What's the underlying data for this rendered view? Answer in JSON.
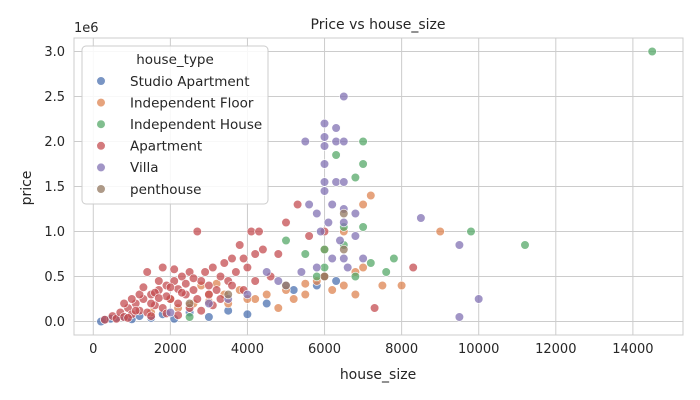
{
  "chart_data": {
    "type": "scatter",
    "title": "Price vs house_size",
    "xlabel": "house_size",
    "ylabel": "price",
    "y_offset_label": "1e6",
    "xlim": [
      -500,
      15300
    ],
    "ylim": [
      -150000,
      3150000
    ],
    "x_ticks": [
      0,
      2000,
      4000,
      6000,
      8000,
      10000,
      12000,
      14000
    ],
    "x_tick_labels": [
      "0",
      "2000",
      "4000",
      "6000",
      "8000",
      "10000",
      "12000",
      "14000"
    ],
    "y_ticks": [
      0,
      500000,
      1000000,
      1500000,
      2000000,
      2500000,
      3000000
    ],
    "y_tick_labels": [
      "0.0",
      "0.5",
      "1.0",
      "1.5",
      "2.0",
      "2.5",
      "3.0"
    ],
    "grid": true,
    "legend": {
      "title": "house_type",
      "position": "upper-left"
    },
    "series": [
      {
        "name": "Studio Apartment",
        "color": "#4c72b0",
        "points": [
          [
            200,
            0
          ],
          [
            300,
            20000
          ],
          [
            450,
            30000
          ],
          [
            600,
            40000
          ],
          [
            800,
            50000
          ],
          [
            1000,
            25000
          ],
          [
            1200,
            60000
          ],
          [
            1500,
            40000
          ],
          [
            1800,
            80000
          ],
          [
            2100,
            30000
          ],
          [
            2500,
            100000
          ],
          [
            3000,
            50000
          ],
          [
            3500,
            120000
          ],
          [
            4000,
            80000
          ],
          [
            4500,
            200000
          ],
          [
            5200,
            350000
          ],
          [
            5800,
            400000
          ],
          [
            6000,
            500000
          ],
          [
            6300,
            450000
          ]
        ]
      },
      {
        "name": "Independent Floor",
        "color": "#dd8452",
        "points": [
          [
            1500,
            100000
          ],
          [
            2000,
            250000
          ],
          [
            2500,
            180000
          ],
          [
            2800,
            400000
          ],
          [
            3000,
            300000
          ],
          [
            3200,
            420000
          ],
          [
            3500,
            200000
          ],
          [
            3800,
            350000
          ],
          [
            4200,
            250000
          ],
          [
            4500,
            300000
          ],
          [
            4800,
            150000
          ],
          [
            5000,
            350000
          ],
          [
            5200,
            250000
          ],
          [
            5500,
            300000
          ],
          [
            5800,
            450000
          ],
          [
            6000,
            500000
          ],
          [
            6200,
            350000
          ],
          [
            6500,
            400000
          ],
          [
            6800,
            300000
          ],
          [
            7000,
            600000
          ],
          [
            7200,
            1400000
          ],
          [
            7500,
            400000
          ],
          [
            6500,
            1000000
          ],
          [
            7000,
            1300000
          ],
          [
            8000,
            400000
          ],
          [
            9000,
            1000000
          ],
          [
            6000,
            800000
          ],
          [
            6800,
            550000
          ],
          [
            5500,
            420000
          ],
          [
            3000,
            220000
          ],
          [
            4000,
            250000
          ],
          [
            2200,
            150000
          ],
          [
            2600,
            200000
          ],
          [
            3400,
            300000
          ]
        ]
      },
      {
        "name": "Independent House",
        "color": "#55a868",
        "points": [
          [
            2500,
            50000
          ],
          [
            5000,
            900000
          ],
          [
            5500,
            750000
          ],
          [
            6000,
            800000
          ],
          [
            6300,
            1850000
          ],
          [
            6500,
            1050000
          ],
          [
            6800,
            1600000
          ],
          [
            7000,
            2000000
          ],
          [
            7000,
            1750000
          ],
          [
            7000,
            1050000
          ],
          [
            7200,
            650000
          ],
          [
            7600,
            550000
          ],
          [
            7800,
            700000
          ],
          [
            9800,
            1000000
          ],
          [
            11200,
            850000
          ],
          [
            14500,
            3000000
          ],
          [
            6000,
            600000
          ],
          [
            6500,
            850000
          ],
          [
            6800,
            500000
          ],
          [
            5800,
            500000
          ]
        ]
      },
      {
        "name": "Apartment",
        "color": "#c44e52",
        "points": [
          [
            300,
            20000
          ],
          [
            500,
            60000
          ],
          [
            600,
            30000
          ],
          [
            700,
            100000
          ],
          [
            800,
            50000
          ],
          [
            900,
            150000
          ],
          [
            1000,
            80000
          ],
          [
            1100,
            200000
          ],
          [
            1200,
            120000
          ],
          [
            1300,
            250000
          ],
          [
            1400,
            100000
          ],
          [
            1500,
            300000
          ],
          [
            1600,
            180000
          ],
          [
            1700,
            350000
          ],
          [
            1800,
            150000
          ],
          [
            1900,
            400000
          ],
          [
            2000,
            250000
          ],
          [
            2100,
            450000
          ],
          [
            2200,
            200000
          ],
          [
            2300,
            500000
          ],
          [
            2400,
            300000
          ],
          [
            2500,
            550000
          ],
          [
            2600,
            350000
          ],
          [
            2700,
            1000000
          ],
          [
            2800,
            450000
          ],
          [
            2900,
            550000
          ],
          [
            3000,
            400000
          ],
          [
            3100,
            600000
          ],
          [
            3200,
            350000
          ],
          [
            3300,
            500000
          ],
          [
            3400,
            650000
          ],
          [
            3500,
            450000
          ],
          [
            3600,
            700000
          ],
          [
            3700,
            550000
          ],
          [
            3800,
            850000
          ],
          [
            3900,
            700000
          ],
          [
            4000,
            600000
          ],
          [
            4100,
            1000000
          ],
          [
            4200,
            750000
          ],
          [
            4300,
            1000000
          ],
          [
            4400,
            800000
          ],
          [
            4600,
            500000
          ],
          [
            4800,
            750000
          ],
          [
            5000,
            1100000
          ],
          [
            5300,
            1300000
          ],
          [
            5600,
            950000
          ],
          [
            6000,
            1000000
          ],
          [
            7300,
            150000
          ],
          [
            8300,
            600000
          ],
          [
            1400,
            550000
          ],
          [
            1800,
            600000
          ],
          [
            2100,
            580000
          ],
          [
            2400,
            420000
          ],
          [
            1500,
            200000
          ],
          [
            1900,
            280000
          ],
          [
            1200,
            300000
          ],
          [
            2200,
            360000
          ],
          [
            1700,
            450000
          ],
          [
            1000,
            250000
          ],
          [
            2600,
            480000
          ],
          [
            800,
            200000
          ],
          [
            1300,
            380000
          ],
          [
            1600,
            320000
          ],
          [
            2000,
            380000
          ],
          [
            2300,
            320000
          ],
          [
            2700,
            250000
          ],
          [
            3000,
            300000
          ],
          [
            3300,
            250000
          ],
          [
            3600,
            400000
          ],
          [
            3900,
            350000
          ],
          [
            4200,
            450000
          ],
          [
            1100,
            120000
          ],
          [
            1500,
            60000
          ],
          [
            1900,
            90000
          ],
          [
            2200,
            70000
          ],
          [
            900,
            40000
          ],
          [
            1700,
            260000
          ],
          [
            2500,
            150000
          ],
          [
            2800,
            120000
          ],
          [
            3100,
            180000
          ]
        ]
      },
      {
        "name": "Villa",
        "color": "#8172b3",
        "points": [
          [
            2000,
            100000
          ],
          [
            3000,
            200000
          ],
          [
            4000,
            300000
          ],
          [
            4500,
            550000
          ],
          [
            5000,
            400000
          ],
          [
            5400,
            550000
          ],
          [
            5600,
            1300000
          ],
          [
            5800,
            1200000
          ],
          [
            6000,
            1550000
          ],
          [
            6000,
            1450000
          ],
          [
            6000,
            1750000
          ],
          [
            6000,
            2050000
          ],
          [
            6000,
            2200000
          ],
          [
            6000,
            1950000
          ],
          [
            6200,
            1300000
          ],
          [
            6300,
            1550000
          ],
          [
            6300,
            2150000
          ],
          [
            6300,
            2000000
          ],
          [
            6500,
            2500000
          ],
          [
            6500,
            2000000
          ],
          [
            6500,
            1550000
          ],
          [
            6500,
            1250000
          ],
          [
            6500,
            1100000
          ],
          [
            6500,
            700000
          ],
          [
            6800,
            1200000
          ],
          [
            6800,
            950000
          ],
          [
            7000,
            700000
          ],
          [
            8500,
            1150000
          ],
          [
            9500,
            50000
          ],
          [
            9500,
            850000
          ],
          [
            10000,
            250000
          ],
          [
            5500,
            2000000
          ],
          [
            6100,
            1100000
          ],
          [
            6400,
            900000
          ],
          [
            5900,
            1000000
          ],
          [
            6200,
            700000
          ],
          [
            6600,
            600000
          ],
          [
            5800,
            600000
          ],
          [
            4800,
            450000
          ],
          [
            3500,
            250000
          ]
        ]
      },
      {
        "name": "penthouse",
        "color": "#937860",
        "points": [
          [
            2500,
            200000
          ],
          [
            3500,
            300000
          ],
          [
            5000,
            400000
          ],
          [
            6000,
            500000
          ],
          [
            6500,
            1200000
          ],
          [
            6500,
            800000
          ]
        ]
      }
    ]
  }
}
